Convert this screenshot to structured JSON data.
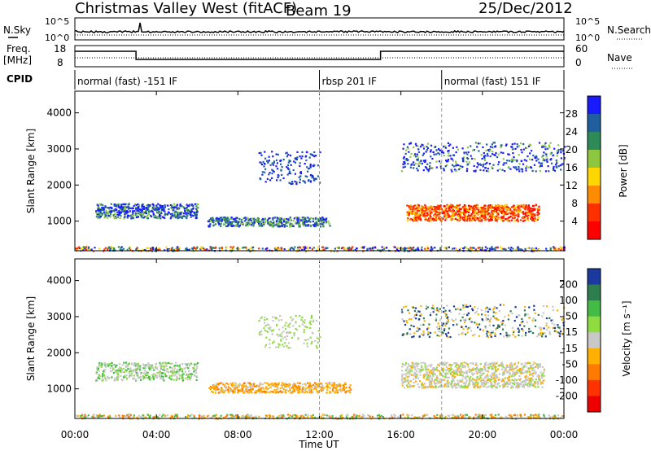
{
  "header": {
    "station": "Christmas Valley West (fitACF)",
    "beam": "Beam 19",
    "date": "25/Dec/2012"
  },
  "top_panels": {
    "nsky_label": "N.Sky",
    "nsearch_label": "N.Search",
    "nsky_ticks": [
      "10^5",
      "10^0"
    ],
    "nsearch_ticks": [
      "10^5",
      "10^0"
    ],
    "freq_label": "Freq.",
    "freq_unit": "[MHz]",
    "freq_ticks": [
      "18",
      "8"
    ],
    "nave_label": "Nave",
    "nave_ticks": [
      "60",
      "0"
    ],
    "cpid_label": "CPID",
    "cpid_segments": [
      {
        "text": "normal (fast) -151 IF",
        "start_hour": 0,
        "end_hour": 12
      },
      {
        "text": "rbsp 201 IF",
        "start_hour": 12,
        "end_hour": 18
      },
      {
        "text": "normal (fast) 151 IF",
        "start_hour": 18,
        "end_hour": 24
      }
    ],
    "freq_profile": [
      {
        "hour": 0,
        "value": "high"
      },
      {
        "hour": 3,
        "value": "low"
      },
      {
        "hour": 15,
        "value": "high"
      }
    ]
  },
  "x_axis": {
    "label": "Time UT",
    "ticks": [
      "00:00",
      "04:00",
      "08:00",
      "12:00",
      "16:00",
      "20:00",
      "00:00"
    ],
    "range_hours": [
      0,
      24
    ]
  },
  "chart_data": [
    {
      "type": "heatmap",
      "name": "power",
      "ylabel": "Slant Range [km]",
      "yticks": [
        "1000",
        "2000",
        "3000",
        "4000"
      ],
      "ylim": [
        180,
        4600
      ],
      "xlim_hours": [
        0,
        24
      ],
      "colorbar": {
        "label": "Power [dB]",
        "ticks": [
          "4",
          "8",
          "12",
          "16",
          "20",
          "24",
          "28"
        ],
        "colors": [
          "#1a1aff",
          "#1f5fa0",
          "#2e8b57",
          "#8dc63f",
          "#ffd700",
          "#ff8c00",
          "#ff3000",
          "#ff0000"
        ]
      }
    },
    {
      "type": "heatmap",
      "name": "velocity",
      "ylabel": "Slant Range [km]",
      "yticks": [
        "1000",
        "2000",
        "3000",
        "4000"
      ],
      "ylim": [
        180,
        4600
      ],
      "xlim_hours": [
        0,
        24
      ],
      "colorbar": {
        "label": "Velocity [m s⁻¹]",
        "ticks": [
          "200",
          "100",
          "50",
          "15",
          "-15",
          "-50",
          "-100",
          "-200"
        ],
        "colors": [
          "#1a3aa0",
          "#2e7d4f",
          "#44bb44",
          "#8fdc40",
          "#c8c8c8",
          "#ffb000",
          "#ff7a00",
          "#ff3300",
          "#ee0000"
        ]
      }
    }
  ]
}
